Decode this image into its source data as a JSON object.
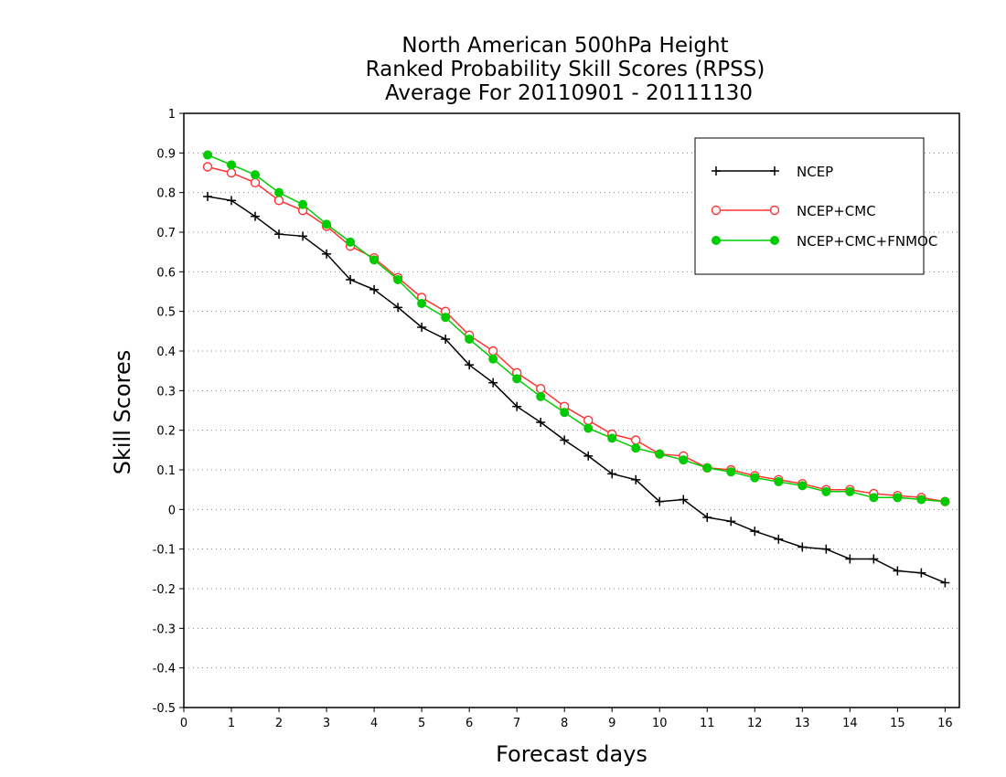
{
  "chart_data": {
    "type": "line",
    "title": [
      "North American 500hPa Height",
      "Ranked Probability Skill Scores (RPSS)",
      "Average For 20110901 - 20111130"
    ],
    "xlabel": "Forecast days",
    "ylabel": "Skill Scores",
    "xlim": [
      0,
      16.3
    ],
    "ylim": [
      -0.5,
      1
    ],
    "xticks": [
      "0",
      "1",
      "2",
      "3",
      "4",
      "5",
      "6",
      "7",
      "8",
      "9",
      "10",
      "11",
      "12",
      "13",
      "14",
      "15",
      "16"
    ],
    "yticks": [
      "1",
      "0.9",
      "0.8",
      "0.7",
      "0.6",
      "0.5",
      "0.4",
      "0.3",
      "0.2",
      "0.1",
      "0",
      "-0.1",
      "-0.2",
      "-0.3",
      "-0.4",
      "-0.5"
    ],
    "grid": "horizontal dotted",
    "legend_position": "top-right",
    "x": [
      0.5,
      1,
      1.5,
      2,
      2.5,
      3,
      3.5,
      4,
      4.5,
      5,
      5.5,
      6,
      6.5,
      7,
      7.5,
      8,
      8.5,
      9,
      9.5,
      10,
      10.5,
      11,
      11.5,
      12,
      12.5,
      13,
      13.5,
      14,
      14.5,
      15,
      15.5,
      16
    ],
    "series": [
      {
        "name": "NCEP",
        "color": "#000000",
        "marker": "plus",
        "values": [
          0.79,
          0.78,
          0.74,
          0.695,
          0.69,
          0.645,
          0.58,
          0.555,
          0.51,
          0.46,
          0.43,
          0.365,
          0.32,
          0.26,
          0.22,
          0.175,
          0.135,
          0.09,
          0.075,
          0.02,
          0.025,
          -0.02,
          -0.03,
          -0.055,
          -0.075,
          -0.095,
          -0.1,
          -0.125,
          -0.125,
          -0.155,
          -0.16,
          -0.185
        ]
      },
      {
        "name": "NCEP+CMC",
        "color": "#ff3333",
        "marker": "open-circle",
        "values": [
          0.865,
          0.85,
          0.825,
          0.78,
          0.755,
          0.715,
          0.665,
          0.635,
          0.585,
          0.535,
          0.5,
          0.44,
          0.4,
          0.345,
          0.305,
          0.26,
          0.225,
          0.19,
          0.175,
          0.14,
          0.135,
          0.105,
          0.1,
          0.085,
          0.075,
          0.065,
          0.05,
          0.05,
          0.04,
          0.035,
          0.03,
          0.02
        ]
      },
      {
        "name": "NCEP+CMC+FNMOC",
        "color": "#00cc00",
        "marker": "filled-circle",
        "values": [
          0.895,
          0.87,
          0.845,
          0.8,
          0.77,
          0.72,
          0.675,
          0.63,
          0.58,
          0.52,
          0.485,
          0.43,
          0.38,
          0.33,
          0.285,
          0.245,
          0.205,
          0.18,
          0.155,
          0.14,
          0.125,
          0.105,
          0.095,
          0.08,
          0.07,
          0.06,
          0.045,
          0.045,
          0.03,
          0.03,
          0.025,
          0.02
        ]
      }
    ]
  }
}
